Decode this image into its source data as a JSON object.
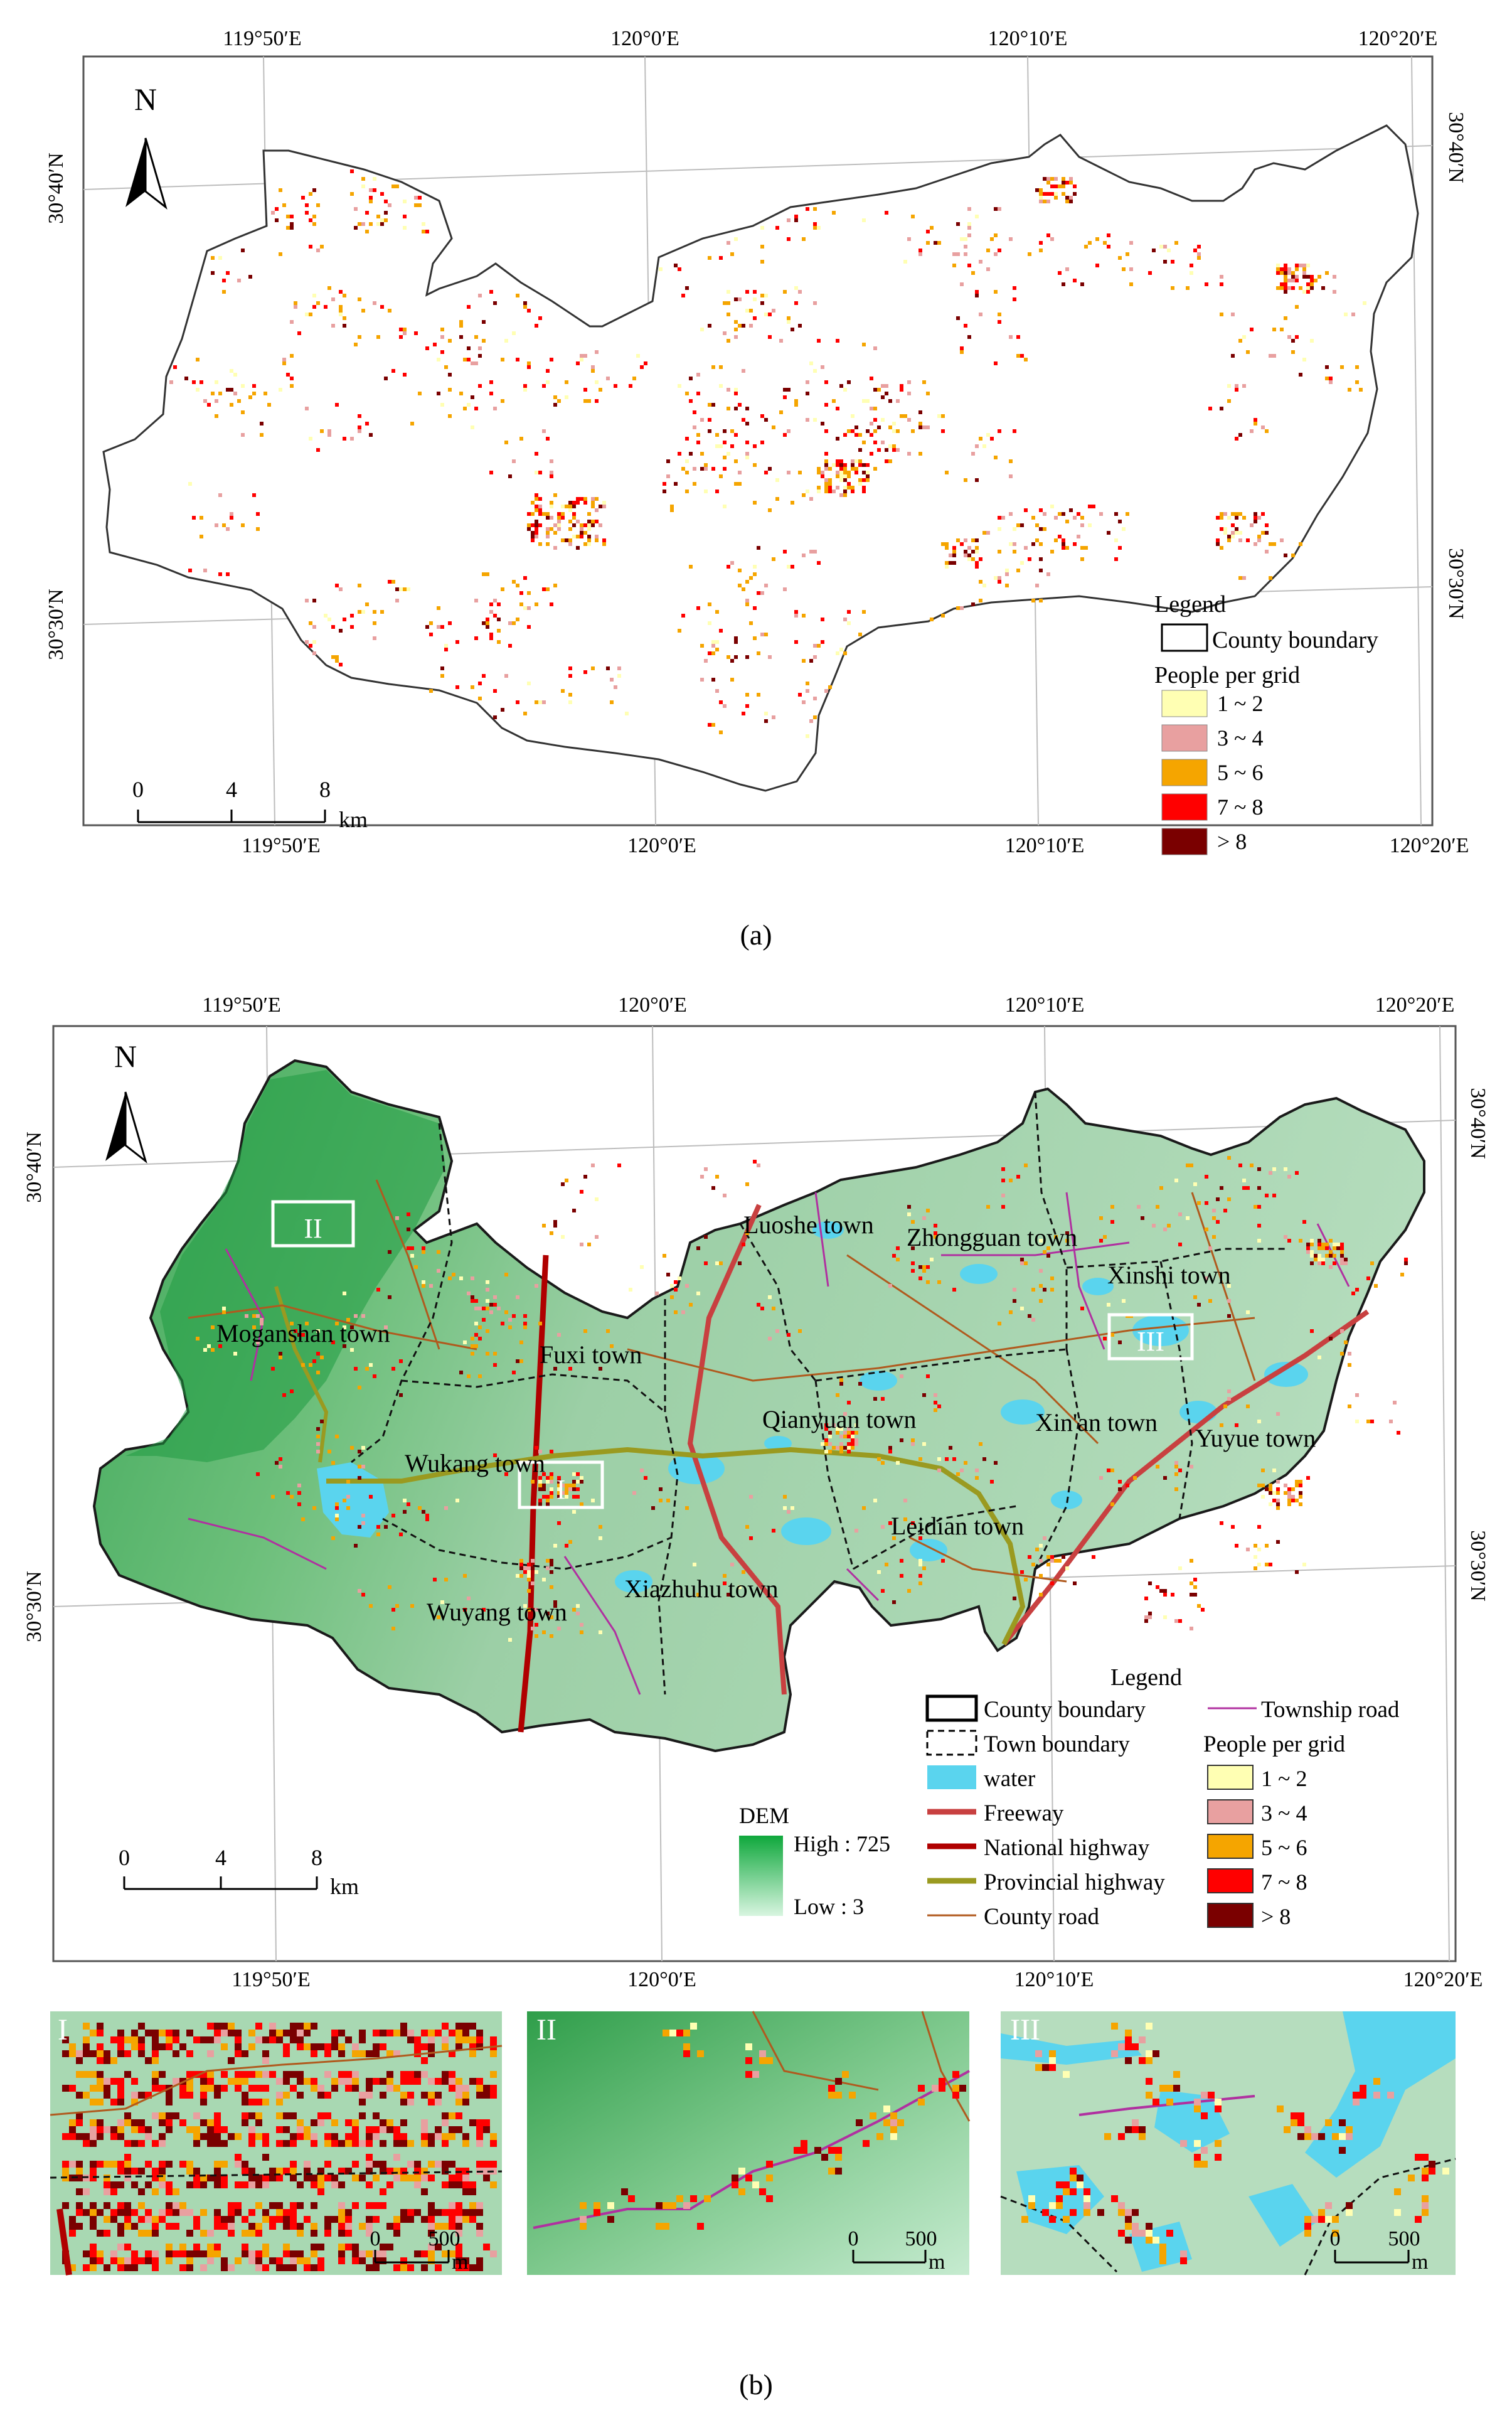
{
  "panel_a": {
    "caption": "(a)",
    "north": "N",
    "top_lon_labels": [
      "119°50′E",
      "120°0′E",
      "120°10′E",
      "120°20′E"
    ],
    "bottom_lon_labels": [
      "119°50′E",
      "120°0′E",
      "120°10′E",
      "120°20′E"
    ],
    "left_lat_labels": [
      "30°40′N",
      "30°30′N"
    ],
    "right_lat_labels": [
      "30°40′N",
      "30°30′N"
    ],
    "scale": {
      "ticks": [
        "0",
        "4",
        "8"
      ],
      "unit": "km"
    },
    "legend": {
      "title": "Legend",
      "county_boundary": "County boundary",
      "people_title": "People per grid",
      "classes": [
        {
          "label": "1 ~ 2",
          "color": "#ffffb3"
        },
        {
          "label": "3 ~ 4",
          "color": "#e8a0a0"
        },
        {
          "label": "5 ~ 6",
          "color": "#f5a500"
        },
        {
          "label": "7 ~ 8",
          "color": "#ff0000"
        },
        {
          "label": "> 8",
          "color": "#7a0000"
        }
      ]
    }
  },
  "panel_b": {
    "caption": "(b)",
    "north": "N",
    "top_lon_labels": [
      "119°50′E",
      "120°0′E",
      "120°10′E",
      "120°20′E"
    ],
    "bottom_lon_labels": [
      "119°50′E",
      "120°0′E",
      "120°10′E",
      "120°20′E"
    ],
    "left_lat_labels": [
      "30°40′N",
      "30°30′N"
    ],
    "right_lat_labels": [
      "30°40′N",
      "30°30′N"
    ],
    "towns": [
      "Luoshe town",
      "Zhongguan town",
      "Xinshi town",
      "Moganshan town",
      "Fuxi town",
      "Qianyuan town",
      "Xin'an town",
      "Yuyue town",
      "Wukang town",
      "Leidian town",
      "Xiazhuhu town",
      "Wuyang town"
    ],
    "boxes": [
      "II",
      "III",
      "I"
    ],
    "scale": {
      "ticks": [
        "0",
        "4",
        "8"
      ],
      "unit": "km"
    },
    "dem": {
      "title": "DEM",
      "high": "High : 725",
      "low": "Low : 3"
    },
    "legend": {
      "title": "Legend",
      "items": [
        {
          "label": "County boundary",
          "color": "#000000"
        },
        {
          "label": "Town boundary",
          "color": "#000000"
        },
        {
          "label": "water",
          "color": "#5ad4ee"
        },
        {
          "label": "Freeway",
          "color": "#c84040"
        },
        {
          "label": "National highway",
          "color": "#b00000"
        },
        {
          "label": "Provincial highway",
          "color": "#9a9a20"
        },
        {
          "label": "County road",
          "color": "#b05a1e"
        },
        {
          "label": "Township road",
          "color": "#b030a0"
        }
      ],
      "people_title": "People per grid",
      "classes": [
        {
          "label": "1 ~ 2",
          "color": "#ffffb3"
        },
        {
          "label": "3 ~ 4",
          "color": "#e8a0a0"
        },
        {
          "label": "5 ~ 6",
          "color": "#f5a500"
        },
        {
          "label": "7 ~ 8",
          "color": "#ff0000"
        },
        {
          "label": "> 8",
          "color": "#7a0000"
        }
      ]
    }
  },
  "insets": [
    {
      "label": "I",
      "scale0": "0",
      "scale1": "500",
      "unit": "m"
    },
    {
      "label": "II",
      "scale0": "0",
      "scale1": "500",
      "unit": "m"
    },
    {
      "label": "III",
      "scale0": "0",
      "scale1": "500",
      "unit": "m"
    }
  ]
}
